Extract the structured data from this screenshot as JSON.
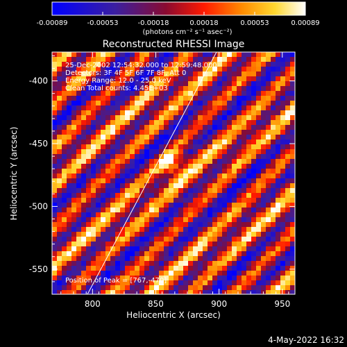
{
  "colorbar": {
    "ticks": [
      "-0.00089",
      "-0.00053",
      "-0.00018",
      "0.00018",
      "0.00053",
      "0.00089"
    ],
    "units_label": "(photons cm⁻² s⁻¹ asec⁻²)"
  },
  "title": "Reconstructed RHESSI Image",
  "annotation": {
    "time_range": "25-Dec-2002 12:54:32.000 to 12:59:48.000",
    "detectors": "Detectors: 3F 4F 5F 6F 7F 8F, Att 0",
    "energy": "Energy Range: 12.0 - 25.0 keV",
    "clean": "Clean     Total counts: 4.45E+03",
    "peak": "Position of Peak = [767,-470]"
  },
  "chart_data": {
    "type": "heatmap",
    "xlabel": "Heliocentric X (arcsec)",
    "ylabel": "Heliocentric Y (arcsec)",
    "xlim": [
      768,
      960
    ],
    "ylim": [
      -570,
      -377
    ],
    "xticks": [
      800,
      850,
      900,
      950
    ],
    "yticks": [
      -400,
      -450,
      -500,
      -550
    ],
    "colorbar_range": [
      -0.00089,
      0.00089
    ],
    "colormap": "blue-purple-red-orange-yellow-white",
    "pattern": "diagonal fringe stripes with a bright peak near [860,-465]",
    "limb_line": [
      [
        796,
        -570
      ],
      [
        898,
        -377
      ]
    ]
  },
  "footer": {
    "date": "4-May-2022 16:32"
  }
}
